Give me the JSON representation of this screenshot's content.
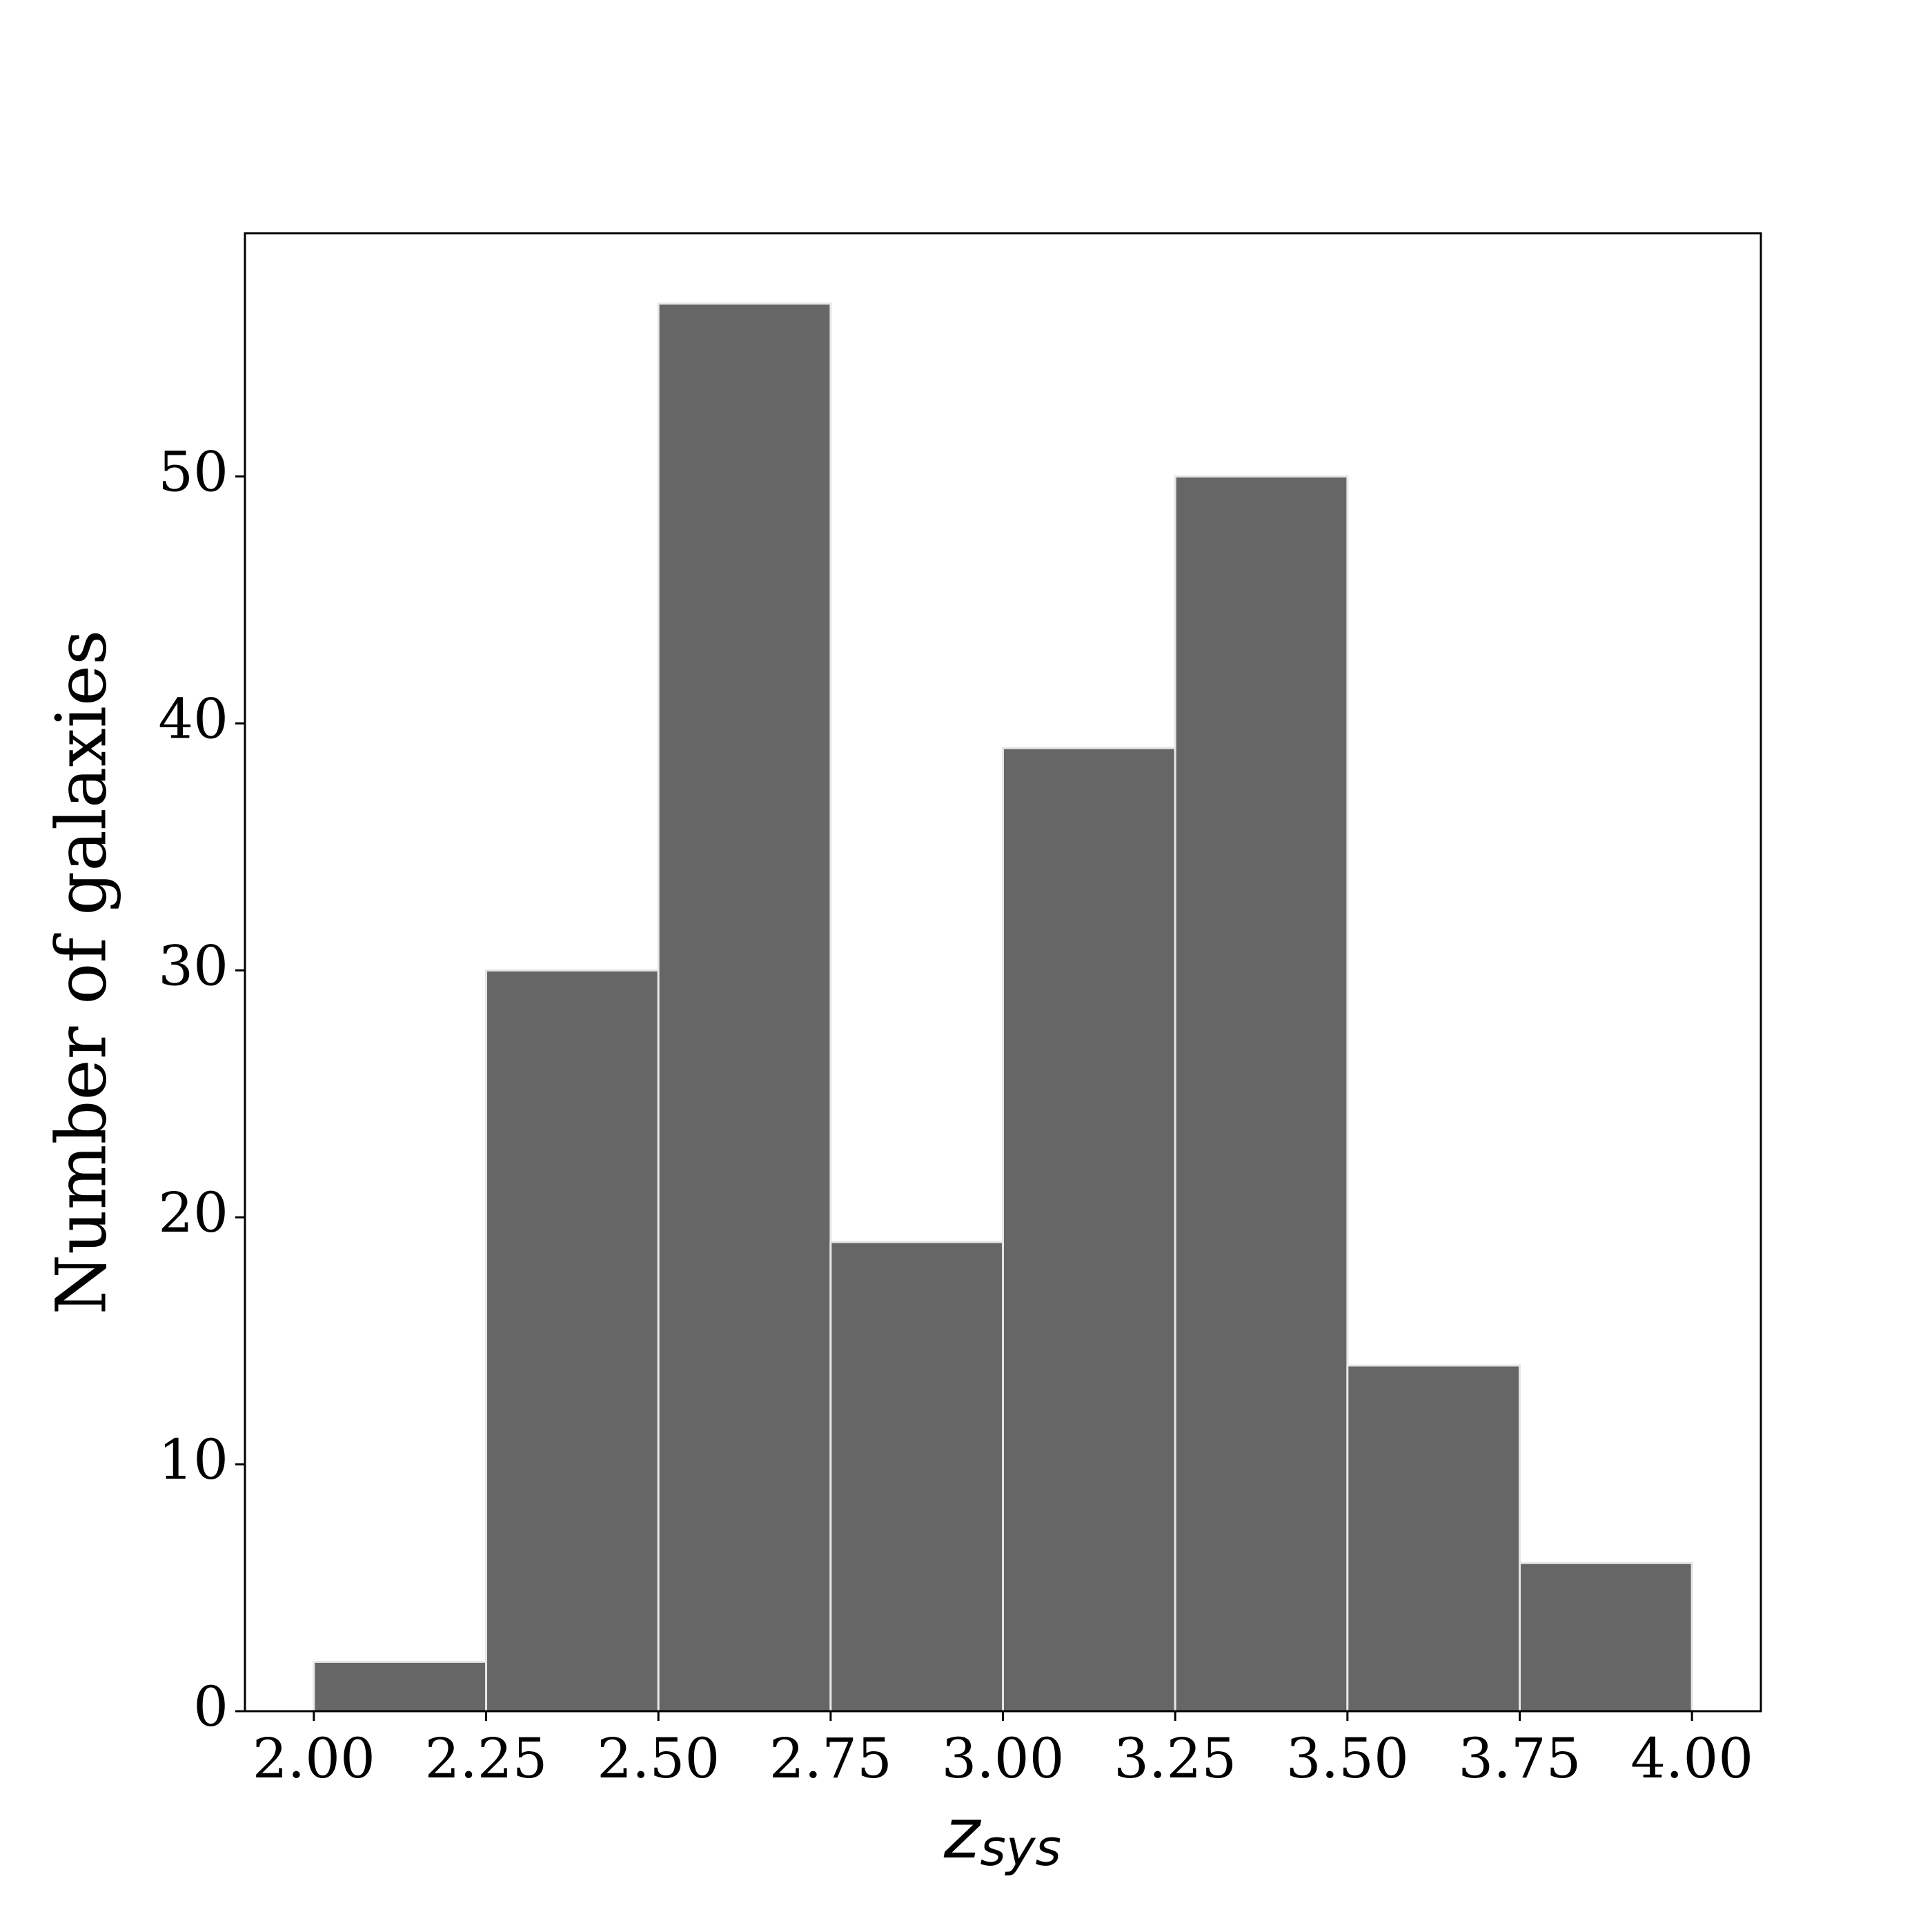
{
  "chart_data": {
    "type": "histogram",
    "xlabel": {
      "text": "z",
      "subscript": "sys"
    },
    "ylabel": "Number of galaxies",
    "bins": [
      2.0,
      2.25,
      2.5,
      2.75,
      3.0,
      3.25,
      3.5,
      3.75,
      4.0
    ],
    "counts": [
      2,
      30,
      57,
      19,
      39,
      50,
      14,
      6
    ],
    "color": "#666666",
    "edgecolor": "#e6e6e6",
    "xlim": [
      1.9,
      4.1
    ],
    "ylim": [
      0,
      59.85
    ],
    "xticks": [
      {
        "value": 2.0,
        "label": "2.00"
      },
      {
        "value": 2.25,
        "label": "2.25"
      },
      {
        "value": 2.5,
        "label": "2.50"
      },
      {
        "value": 2.75,
        "label": "2.75"
      },
      {
        "value": 3.0,
        "label": "3.00"
      },
      {
        "value": 3.25,
        "label": "3.25"
      },
      {
        "value": 3.5,
        "label": "3.50"
      },
      {
        "value": 3.75,
        "label": "3.75"
      },
      {
        "value": 4.0,
        "label": "4.00"
      }
    ],
    "yticks": [
      0,
      10,
      20,
      30,
      40,
      50
    ],
    "grid": false
  }
}
